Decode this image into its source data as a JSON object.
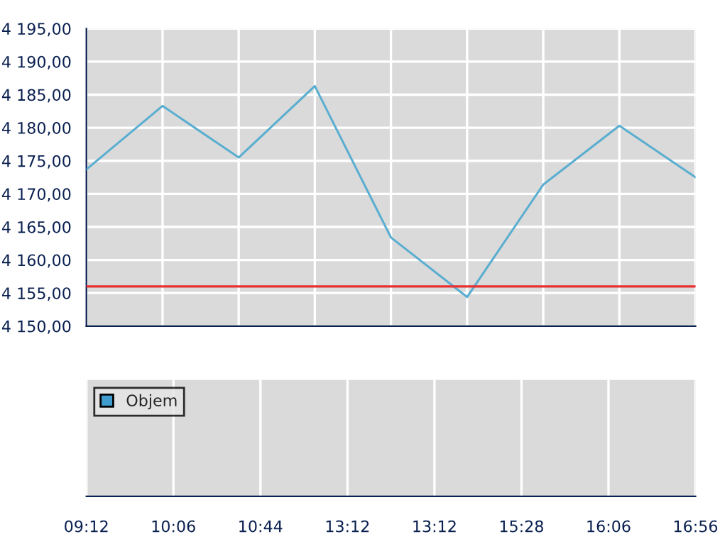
{
  "chart_data": [
    {
      "type": "line",
      "categories": [
        null,
        null,
        null,
        null,
        null,
        null,
        null,
        null,
        null
      ],
      "series": [
        {
          "color": "#5aaed0",
          "values": [
            4173.7,
            4183.3,
            4175.5,
            4186.3,
            4163.4,
            4154.4,
            4171.4,
            4180.3,
            4172.5
          ]
        }
      ],
      "ylim": [
        4150,
        4195
      ],
      "yticks": [
        {
          "value": 4150,
          "label": "4 150,00"
        },
        {
          "value": 4155,
          "label": "4 155,00"
        },
        {
          "value": 4160,
          "label": "4 160,00"
        },
        {
          "value": 4165,
          "label": "4 165,00"
        },
        {
          "value": 4170,
          "label": "4 170,00"
        },
        {
          "value": 4175,
          "label": "4 175,00"
        },
        {
          "value": 4180,
          "label": "4 180,00"
        },
        {
          "value": 4185,
          "label": "4 185,00"
        },
        {
          "value": 4190,
          "label": "4 190,00"
        },
        {
          "value": 4195,
          "label": "4 195,00"
        }
      ],
      "ref_lines": [
        {
          "axis": "y",
          "value": 4156,
          "color": "#e83030"
        }
      ],
      "grid": true,
      "tick_labels": "y"
    },
    {
      "type": "other",
      "categories": [
        "09:12",
        "10:06",
        "10:44",
        "13:12",
        "13:12",
        "15:28",
        "16:06",
        "16:56"
      ],
      "series": [
        {
          "name": "Objem",
          "color": "#3f9ccc",
          "values": [
            null,
            null,
            null,
            null,
            null,
            null,
            null,
            null
          ]
        }
      ],
      "legend": "top left"
    }
  ]
}
